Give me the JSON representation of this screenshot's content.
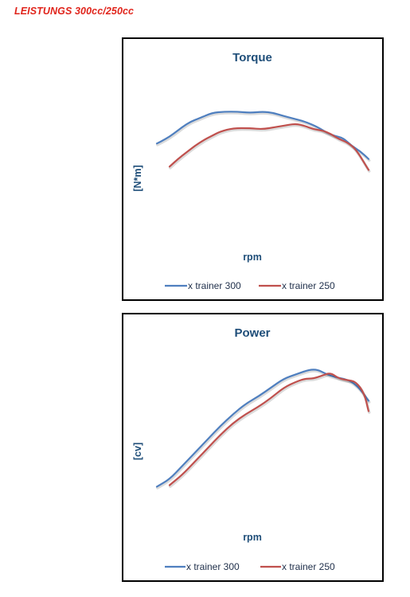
{
  "page": {
    "heading": "LEISTUNGS 300cc/250cc"
  },
  "colors": {
    "series_300": "#4f7fbf",
    "series_250": "#c0504d"
  },
  "chart_data": [
    {
      "type": "line",
      "title": "Torque",
      "xlabel": "rpm",
      "ylabel": "[N*m]",
      "ylim": [
        0,
        100
      ],
      "grid": false,
      "legend": "bottom",
      "series": [
        {
          "name": "x trainer 300",
          "x": [
            0,
            4,
            8,
            12,
            16,
            20,
            26,
            32,
            38,
            44,
            50,
            55,
            60,
            64,
            70,
            76,
            80,
            84,
            88,
            92,
            96,
            100
          ],
          "values": [
            57,
            61,
            66,
            72,
            77,
            80,
            85,
            86,
            86,
            85,
            86,
            85,
            82,
            80,
            77,
            72,
            67,
            64,
            62,
            55,
            50,
            43
          ]
        },
        {
          "name": "x trainer 250",
          "x": [
            6,
            10,
            14,
            18,
            22,
            26,
            30,
            36,
            44,
            50,
            56,
            62,
            66,
            70,
            74,
            78,
            82,
            86,
            90,
            94,
            100
          ],
          "values": [
            36,
            43,
            49,
            55,
            60,
            64,
            68,
            71,
            71,
            70,
            72,
            74,
            75,
            73,
            70,
            69,
            66,
            61,
            58,
            52,
            33
          ]
        }
      ]
    },
    {
      "type": "line",
      "title": "Power",
      "xlabel": "rpm",
      "ylabel": "[cv]",
      "ylim": [
        0,
        100
      ],
      "grid": false,
      "legend": "bottom",
      "series": [
        {
          "name": "x trainer 300",
          "x": [
            0,
            6,
            12,
            18,
            24,
            30,
            36,
            42,
            48,
            54,
            60,
            66,
            72,
            76,
            80,
            84,
            88,
            92,
            96,
            100
          ],
          "values": [
            17,
            22,
            31,
            40,
            49,
            58,
            66,
            73,
            78,
            84,
            90,
            93,
            96,
            96,
            93,
            91,
            90,
            88,
            83,
            75
          ]
        },
        {
          "name": "x trainer 250",
          "x": [
            6,
            12,
            18,
            24,
            30,
            36,
            42,
            48,
            54,
            60,
            66,
            70,
            74,
            78,
            82,
            86,
            90,
            94,
            98,
            100
          ],
          "values": [
            18,
            25,
            34,
            43,
            52,
            60,
            66,
            71,
            77,
            84,
            88,
            90,
            90,
            92,
            94,
            90,
            89,
            88,
            80,
            68
          ]
        }
      ]
    }
  ]
}
